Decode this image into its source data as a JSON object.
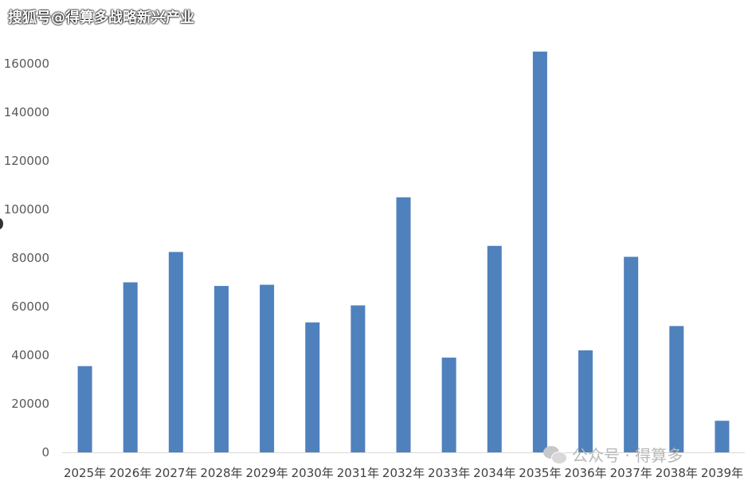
{
  "watermark_top": "搜狐号@得算多战略新兴产业",
  "watermark_bottom": "公众号 · 得算多",
  "colors": {
    "bar": "#4f81bd",
    "axis": "#d9d9d9",
    "text": "#595959"
  },
  "chart_data": {
    "type": "bar",
    "title": "",
    "xlabel": "",
    "ylabel": "",
    "categories": [
      "2025年",
      "2026年",
      "2027年",
      "2028年",
      "2029年",
      "2030年",
      "2031年",
      "2032年",
      "2033年",
      "2034年",
      "2035年",
      "2036年",
      "2037年",
      "2038年",
      "2039年"
    ],
    "values": [
      35500,
      70000,
      82500,
      68500,
      69000,
      53500,
      60500,
      105000,
      39000,
      85000,
      165000,
      42000,
      80500,
      52000,
      13000
    ],
    "ylim": [
      0,
      180000
    ],
    "yticks": [
      0,
      20000,
      40000,
      60000,
      80000,
      100000,
      120000,
      140000,
      160000
    ],
    "grid": false,
    "legend": "none"
  }
}
